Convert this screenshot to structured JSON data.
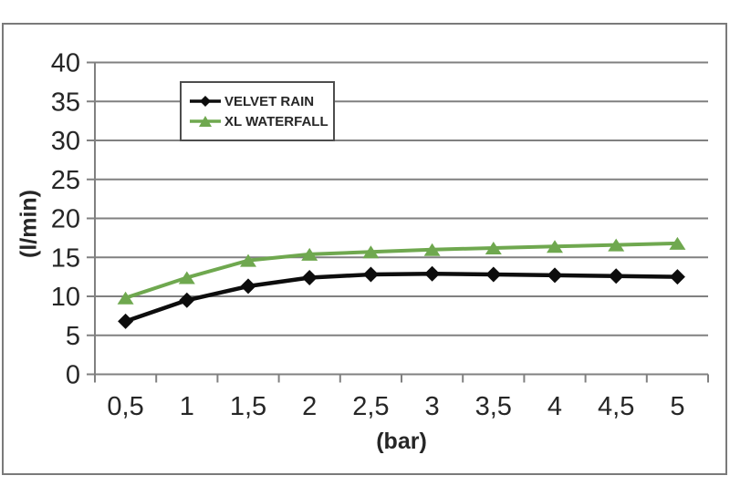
{
  "chart_data": {
    "type": "line",
    "categories": [
      "0,5",
      "1",
      "1,5",
      "2",
      "2,5",
      "3",
      "3,5",
      "4",
      "4,5",
      "5"
    ],
    "series": [
      {
        "name": "VELVET RAIN",
        "marker": "diamond",
        "color": "#0d0d0d",
        "values": [
          6.8,
          9.5,
          11.3,
          12.4,
          12.8,
          12.9,
          12.8,
          12.7,
          12.6,
          12.5
        ]
      },
      {
        "name": "XL WATERFALL",
        "marker": "triangle",
        "color": "#6fa84f",
        "values": [
          9.8,
          12.4,
          14.6,
          15.4,
          15.7,
          16.0,
          16.2,
          16.4,
          16.6,
          16.8
        ]
      }
    ],
    "xlabel": "(bar)",
    "ylabel": "(l/min)",
    "yticks": [
      0,
      5,
      10,
      15,
      20,
      25,
      30,
      35,
      40
    ],
    "ylim": [
      0,
      40
    ],
    "grid": true,
    "legend_position": "top-center-inside"
  },
  "styles": {
    "grid_color": "#808080",
    "text_color": "#262626",
    "frame_color": "#7a7a7a",
    "background": "#ffffff"
  }
}
